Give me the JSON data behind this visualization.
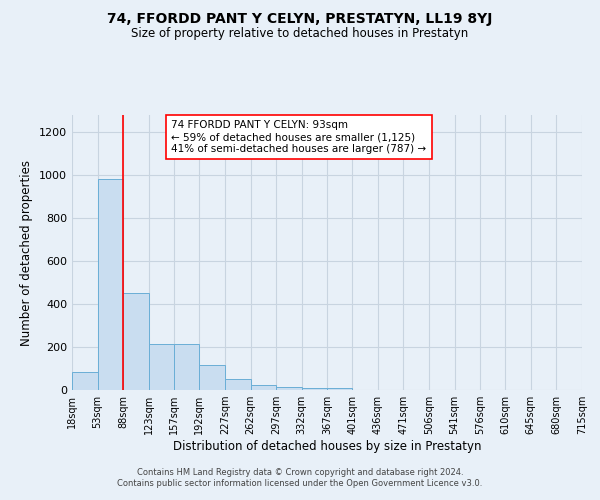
{
  "title": "74, FFORDD PANT Y CELYN, PRESTATYN, LL19 8YJ",
  "subtitle": "Size of property relative to detached houses in Prestatyn",
  "xlabel": "Distribution of detached houses by size in Prestatyn",
  "ylabel": "Number of detached properties",
  "bar_values": [
    85,
    980,
    450,
    215,
    215,
    115,
    50,
    25,
    15,
    10,
    10,
    0,
    0,
    0,
    0,
    0,
    0,
    0,
    0,
    0
  ],
  "bin_edges": [
    18,
    53,
    88,
    123,
    157,
    192,
    227,
    262,
    297,
    332,
    367,
    401,
    436,
    471,
    506,
    541,
    576,
    610,
    645,
    680,
    715
  ],
  "tick_labels": [
    "18sqm",
    "53sqm",
    "88sqm",
    "123sqm",
    "157sqm",
    "192sqm",
    "227sqm",
    "262sqm",
    "297sqm",
    "332sqm",
    "367sqm",
    "401sqm",
    "436sqm",
    "471sqm",
    "506sqm",
    "541sqm",
    "576sqm",
    "610sqm",
    "645sqm",
    "680sqm",
    "715sqm"
  ],
  "bar_color": "#c9ddf0",
  "bar_edge_color": "#6aaed6",
  "red_line_x": 88,
  "ylim": [
    0,
    1280
  ],
  "yticks": [
    0,
    200,
    400,
    600,
    800,
    1000,
    1200
  ],
  "annotation_lines": [
    "74 FFORDD PANT Y CELYN: 93sqm",
    "← 59% of detached houses are smaller (1,125)",
    "41% of semi-detached houses are larger (787) →"
  ],
  "footer_line1": "Contains HM Land Registry data © Crown copyright and database right 2024.",
  "footer_line2": "Contains public sector information licensed under the Open Government Licence v3.0.",
  "background_color": "#e8f0f8",
  "plot_bg_color": "#e8f0f8",
  "grid_color": "#c8d4e0"
}
